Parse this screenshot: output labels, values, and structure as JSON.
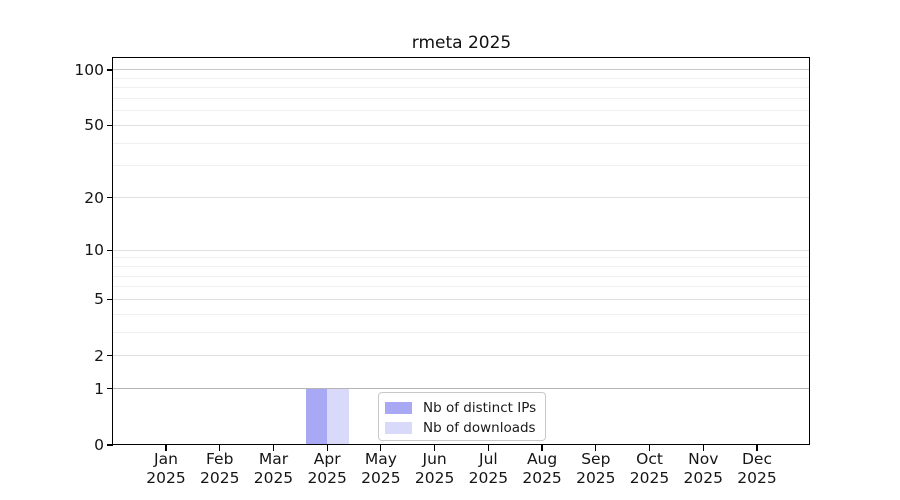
{
  "chart_data": {
    "type": "bar",
    "title": "rmeta 2025",
    "categories": [
      "Jan 2025",
      "Feb 2025",
      "Mar 2025",
      "Apr 2025",
      "May 2025",
      "Jun 2025",
      "Jul 2025",
      "Aug 2025",
      "Sep 2025",
      "Oct 2025",
      "Nov 2025",
      "Dec 2025"
    ],
    "x_labels": [
      {
        "month": "Jan",
        "year": "2025"
      },
      {
        "month": "Feb",
        "year": "2025"
      },
      {
        "month": "Mar",
        "year": "2025"
      },
      {
        "month": "Apr",
        "year": "2025"
      },
      {
        "month": "May",
        "year": "2025"
      },
      {
        "month": "Jun",
        "year": "2025"
      },
      {
        "month": "Jul",
        "year": "2025"
      },
      {
        "month": "Aug",
        "year": "2025"
      },
      {
        "month": "Sep",
        "year": "2025"
      },
      {
        "month": "Oct",
        "year": "2025"
      },
      {
        "month": "Nov",
        "year": "2025"
      },
      {
        "month": "Dec",
        "year": "2025"
      }
    ],
    "series": [
      {
        "name": "Nb of distinct IPs",
        "color": "#a8a8f4",
        "values": [
          0,
          0,
          0,
          1,
          0,
          0,
          0,
          0,
          0,
          0,
          0,
          0
        ]
      },
      {
        "name": "Nb of downloads",
        "color": "#d9d9f9",
        "values": [
          0,
          0,
          0,
          1,
          0,
          0,
          0,
          0,
          0,
          0,
          0,
          0
        ]
      }
    ],
    "y_scale": "log1p",
    "y_ticks": [
      0,
      1,
      2,
      5,
      10,
      20,
      50,
      100
    ],
    "y_minor_gridlines": [
      3,
      4,
      6,
      7,
      8,
      9,
      30,
      40,
      60,
      70,
      80,
      90
    ],
    "ylim": [
      0,
      116
    ],
    "xlabel": "",
    "ylabel": "",
    "grid": "horizontal",
    "legend_position": "inside lower center"
  },
  "colors": {
    "grid_major_default": "#e0e0e0",
    "grid_major_one": "#b4b4b4",
    "grid_major_hundred": "#c8c8c8",
    "grid_minor": "#efefef",
    "axis": "#000000"
  }
}
